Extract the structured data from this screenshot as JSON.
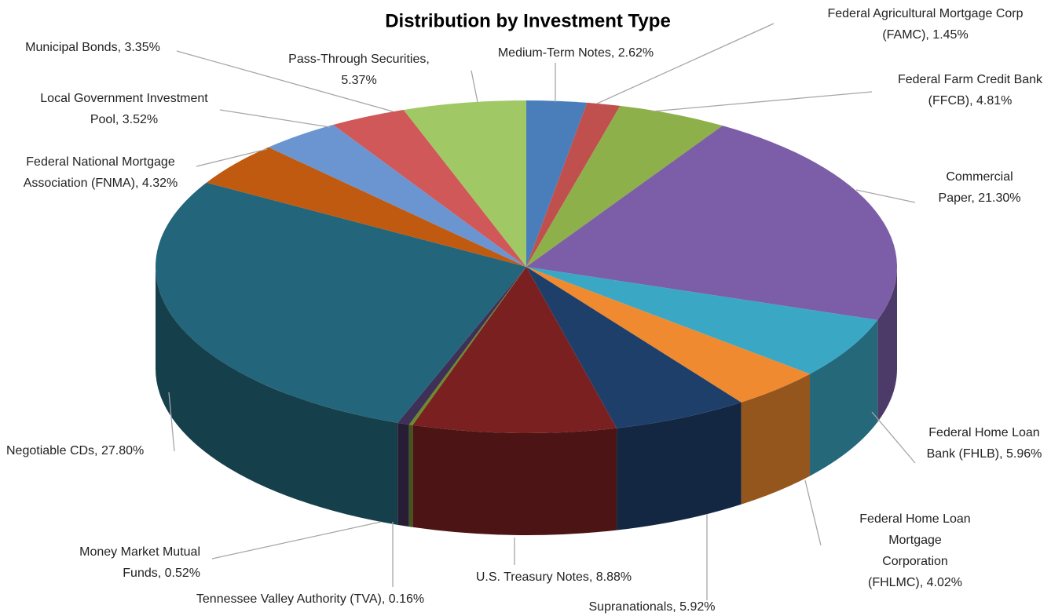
{
  "chart_data": {
    "type": "pie3d",
    "title": "Distribution by Investment Type",
    "values": [
      2.62,
      1.45,
      4.81,
      21.3,
      5.96,
      4.02,
      5.92,
      8.88,
      0.16,
      0.52,
      27.8,
      4.32,
      3.52,
      3.35,
      5.37
    ],
    "value_labels": [
      [
        "Medium-Term Notes, 2.62%"
      ],
      [
        "Federal Agricultural Mortgage Corp",
        "(FAMC), 1.45%"
      ],
      [
        "Federal Farm Credit Bank",
        "(FFCB), 4.81%"
      ],
      [
        "Commercial",
        "Paper, 21.30%"
      ],
      [
        "Federal Home Loan",
        "Bank (FHLB), 5.96%"
      ],
      [
        "Federal Home Loan",
        "Mortgage",
        "Corporation",
        "(FHLMC), 4.02%"
      ],
      [
        "Supranationals, 5.92%"
      ],
      [
        "U.S. Treasury Notes, 8.88%"
      ],
      [
        "Tennessee Valley Authority (TVA), 0.16%"
      ],
      [
        "Money Market Mutual",
        "Funds, 0.52%"
      ],
      [
        "Negotiable CDs, 27.80%"
      ],
      [
        "Federal National Mortgage",
        "Association (FNMA), 4.32%"
      ],
      [
        "Local Government Investment",
        "Pool, 3.52%"
      ],
      [
        "Municipal Bonds, 3.35%"
      ],
      [
        "Pass-Through Securities,",
        "5.37%"
      ]
    ],
    "colors": [
      "#4a7ebb",
      "#c0504d",
      "#8db04a",
      "#7b5ea7",
      "#3aa7c4",
      "#f08a30",
      "#1f3f6b",
      "#7a2020",
      "#6b8a2a",
      "#3f3057",
      "#23657a",
      "#c05a10",
      "#6b95d0",
      "#d05858",
      "#a0c865"
    ]
  }
}
